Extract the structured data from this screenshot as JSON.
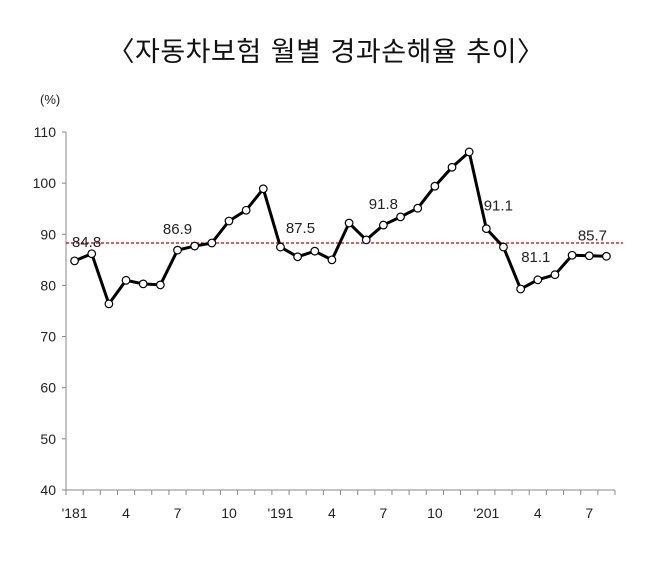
{
  "chart_data": {
    "type": "line",
    "title": "〈자동차보험 월별 경과손해율 추이〉",
    "ylabel": "(%)",
    "xlabel": "",
    "ylim": [
      40,
      110
    ],
    "yticks": [
      40,
      50,
      60,
      70,
      80,
      90,
      100,
      110
    ],
    "grid": false,
    "x_tick_labels": [
      "'181",
      "4",
      "7",
      "10",
      "'191",
      "4",
      "7",
      "10",
      "'201",
      "4",
      "7"
    ],
    "reference_line": {
      "value": 88.3,
      "color": "#c00000",
      "style": "dashed"
    },
    "series": [
      {
        "name": "경과손해율",
        "color": "#000000",
        "values": [
          84.8,
          86.2,
          76.4,
          81.0,
          80.3,
          80.1,
          86.9,
          87.7,
          88.3,
          92.6,
          94.7,
          98.9,
          87.5,
          85.6,
          86.7,
          85.0,
          92.2,
          88.9,
          91.8,
          93.4,
          95.1,
          99.4,
          103.1,
          106.1,
          91.1,
          87.5,
          79.3,
          81.1,
          82.1,
          85.9,
          85.8,
          85.7
        ]
      }
    ],
    "data_labels": [
      {
        "index": 0,
        "text": "84.8"
      },
      {
        "index": 6,
        "text": "86.9"
      },
      {
        "index": 12,
        "text": "87.5"
      },
      {
        "index": 18,
        "text": "91.8"
      },
      {
        "index": 24,
        "text": "91.1"
      },
      {
        "index": 27,
        "text": "81.1"
      },
      {
        "index": 31,
        "text": "85.7"
      }
    ]
  }
}
